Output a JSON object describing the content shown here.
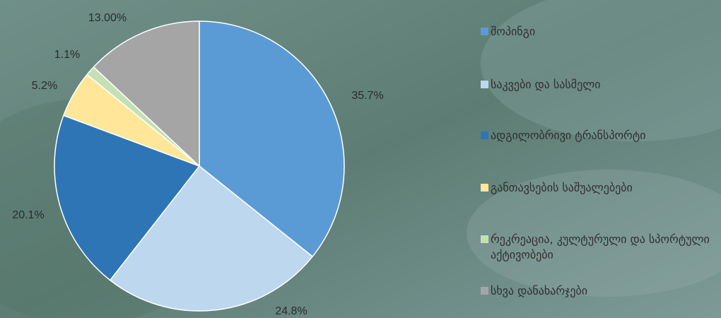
{
  "colors": {
    "background": "#5e7f78",
    "slice_colors": [
      "#5b9bd5",
      "#bdd7ee",
      "#2e75b6",
      "#ffe699",
      "#c5e0b4",
      "#a5a5a5"
    ]
  },
  "chart_data": {
    "type": "pie",
    "title": "",
    "categories": [
      "შოპინგი",
      "საკვები და სასმელი",
      "ადგილობრივი ტრანსპორტი",
      "განთავსების საშუალებები",
      "რეკრეაცია, კულტურული და სპორტული აქტივობები",
      "სხვა დანახარჯები"
    ],
    "values": [
      35.7,
      24.8,
      20.1,
      5.2,
      1.1,
      13.0
    ],
    "data_labels": [
      "35.7%",
      "24.8%",
      "20.1%",
      "5.2%",
      "1.1%",
      "13.00%"
    ],
    "legend_position": "right"
  }
}
